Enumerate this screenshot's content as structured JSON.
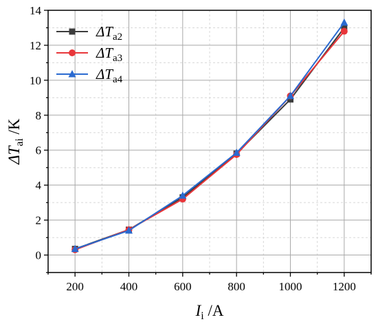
{
  "chart_data": {
    "type": "line",
    "x": [
      200,
      400,
      600,
      800,
      1000,
      1200
    ],
    "xlim": [
      100,
      1300
    ],
    "ylim": [
      -1,
      14
    ],
    "xticks": [
      "200",
      "400",
      "600",
      "800",
      "1000",
      "1200"
    ],
    "yticks": [
      "0",
      "2",
      "4",
      "6",
      "8",
      "10",
      "12",
      "14"
    ],
    "grid": true,
    "legend_position": "top-left",
    "xlabel": {
      "main": "I",
      "sub": "i",
      "unit": " /A"
    },
    "ylabel": {
      "main": "ΔT",
      "sub": "ai",
      "unit": " /K"
    },
    "series": [
      {
        "name": "ΔT",
        "sub": "a2",
        "marker": "square",
        "color": "#3c3c3c",
        "values": [
          0.35,
          1.45,
          3.3,
          5.8,
          8.9,
          13.0
        ]
      },
      {
        "name": "ΔT",
        "sub": "a3",
        "marker": "circle",
        "color": "#e8363a",
        "values": [
          0.3,
          1.45,
          3.2,
          5.75,
          9.1,
          12.8
        ]
      },
      {
        "name": "ΔT",
        "sub": "a4",
        "marker": "triangle",
        "color": "#2a6ad0",
        "values": [
          0.35,
          1.4,
          3.4,
          5.85,
          9.1,
          13.3
        ]
      }
    ]
  }
}
